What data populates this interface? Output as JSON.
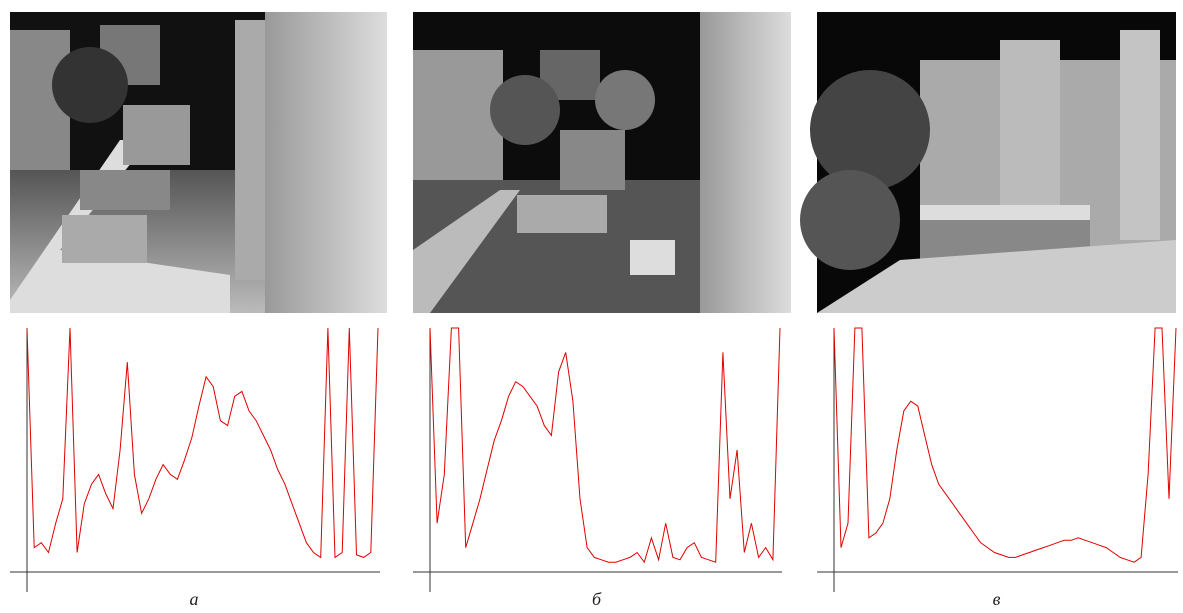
{
  "chart_data": [
    {
      "type": "line",
      "caption": "а",
      "color": "#e00000",
      "ylim": [
        0,
        100
      ],
      "values": [
        100,
        10,
        12,
        8,
        20,
        30,
        100,
        8,
        28,
        36,
        40,
        32,
        26,
        50,
        86,
        40,
        24,
        30,
        38,
        44,
        40,
        38,
        46,
        55,
        68,
        80,
        76,
        62,
        60,
        72,
        74,
        66,
        62,
        56,
        50,
        42,
        36,
        28,
        20,
        12,
        8,
        6,
        100,
        6,
        8,
        100,
        7,
        6,
        8,
        100
      ]
    },
    {
      "type": "line",
      "caption": "б",
      "color": "#e00000",
      "ylim": [
        0,
        100
      ],
      "values": [
        100,
        20,
        40,
        100,
        100,
        10,
        20,
        30,
        42,
        54,
        62,
        72,
        78,
        76,
        72,
        68,
        60,
        56,
        82,
        90,
        70,
        30,
        10,
        6,
        5,
        4,
        4,
        5,
        6,
        8,
        4,
        14,
        5,
        20,
        6,
        5,
        10,
        12,
        6,
        5,
        4,
        90,
        30,
        50,
        8,
        20,
        6,
        10,
        5,
        100
      ]
    },
    {
      "type": "line",
      "caption": "в",
      "color": "#e00000",
      "ylim": [
        0,
        100
      ],
      "values": [
        100,
        10,
        20,
        100,
        100,
        14,
        16,
        20,
        30,
        50,
        66,
        70,
        68,
        56,
        44,
        36,
        32,
        28,
        24,
        20,
        16,
        12,
        10,
        8,
        7,
        6,
        6,
        7,
        8,
        9,
        10,
        11,
        12,
        13,
        13,
        14,
        13,
        12,
        11,
        10,
        8,
        6,
        5,
        4,
        6,
        40,
        100,
        100,
        30,
        100
      ]
    }
  ]
}
